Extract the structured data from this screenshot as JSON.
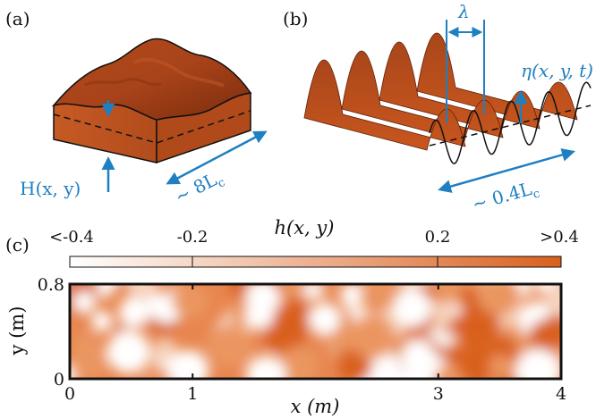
{
  "panels": {
    "a": {
      "label": "(a)",
      "height_label": "H(x, y)",
      "size_label": "∼ 8L",
      "size_sub": "c"
    },
    "b": {
      "label": "(b)",
      "wavelength_label": "λ",
      "eta_label": "η(x, y, t)",
      "size_label": "∼ 0.4L",
      "size_sub": "c"
    },
    "c": {
      "label": "(c)"
    }
  },
  "colorbar": {
    "title": "h(x, y)",
    "ticks": [
      "<-0.4",
      "-0.2",
      "0.2",
      ">0.4"
    ],
    "color_low": "#ffffff",
    "color_high": "#d9601e"
  },
  "colors": {
    "surface": "#c8561e",
    "surface_dark": "#8a3210",
    "annotation_blue": "#1e7fc1"
  },
  "chart_data": {
    "type": "heatmap",
    "xlabel": "x (m)",
    "ylabel": "y (m)",
    "xlim": [
      0,
      4
    ],
    "ylim": [
      0,
      0.8
    ],
    "x_ticks": [
      "0",
      "1",
      "3",
      "4"
    ],
    "y_ticks": [
      "0",
      "0.8"
    ],
    "colorbar_label": "h(x, y)",
    "colorbar_range": [
      -0.4,
      0.4
    ]
  }
}
